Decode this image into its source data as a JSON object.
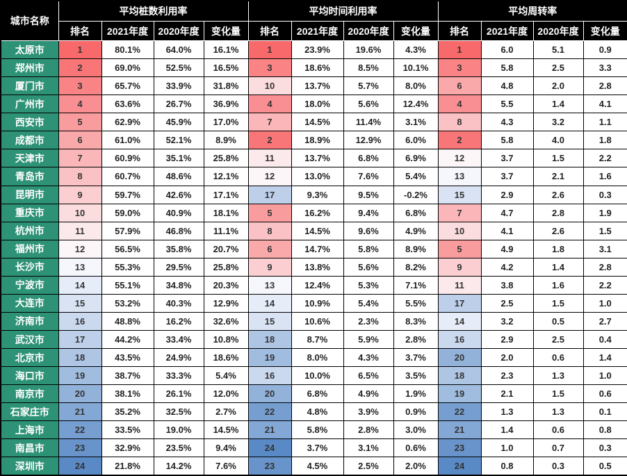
{
  "chart_data": {
    "type": "table",
    "corner_header": "城市名称",
    "column_groups": [
      {
        "title": "平均桩数利用率",
        "columns": [
          "排名",
          "2021年度",
          "2020年度",
          "变化量"
        ]
      },
      {
        "title": "平均时间利用率",
        "columns": [
          "排名",
          "2021年度",
          "2020年度",
          "变化量"
        ]
      },
      {
        "title": "平均周转率",
        "columns": [
          "排名",
          "2021年度",
          "2020年度",
          "变化量"
        ]
      }
    ],
    "rank_scale": {
      "min_rank": 1,
      "max_rank": 24
    },
    "rows": [
      {
        "city": "太原市",
        "cells": [
          [
            1,
            "80.1%",
            "64.0%",
            "16.1%"
          ],
          [
            1,
            "23.9%",
            "19.6%",
            "4.3%"
          ],
          [
            1,
            "6.0",
            "5.1",
            "0.9"
          ]
        ]
      },
      {
        "city": "郑州市",
        "cells": [
          [
            2,
            "69.0%",
            "52.5%",
            "16.5%"
          ],
          [
            3,
            "18.6%",
            "8.5%",
            "10.1%"
          ],
          [
            3,
            "5.8",
            "2.5",
            "3.3"
          ]
        ]
      },
      {
        "city": "厦门市",
        "cells": [
          [
            3,
            "65.7%",
            "33.9%",
            "31.8%"
          ],
          [
            10,
            "13.7%",
            "5.7%",
            "8.0%"
          ],
          [
            6,
            "4.8",
            "2.0",
            "2.8"
          ]
        ]
      },
      {
        "city": "广州市",
        "cells": [
          [
            4,
            "63.6%",
            "26.7%",
            "36.9%"
          ],
          [
            4,
            "18.0%",
            "5.6%",
            "12.4%"
          ],
          [
            4,
            "5.5",
            "1.4",
            "4.1"
          ]
        ]
      },
      {
        "city": "西安市",
        "cells": [
          [
            5,
            "62.9%",
            "45.9%",
            "17.0%"
          ],
          [
            7,
            "14.5%",
            "11.4%",
            "3.1%"
          ],
          [
            8,
            "4.3",
            "3.2",
            "1.1"
          ]
        ]
      },
      {
        "city": "成都市",
        "cells": [
          [
            6,
            "61.0%",
            "52.1%",
            "8.9%"
          ],
          [
            2,
            "18.9%",
            "12.9%",
            "6.0%"
          ],
          [
            2,
            "5.8",
            "4.0",
            "1.8"
          ]
        ]
      },
      {
        "city": "天津市",
        "cells": [
          [
            7,
            "60.9%",
            "35.1%",
            "25.8%"
          ],
          [
            11,
            "13.7%",
            "6.8%",
            "6.9%"
          ],
          [
            12,
            "3.7",
            "1.5",
            "2.2"
          ]
        ]
      },
      {
        "city": "青岛市",
        "cells": [
          [
            8,
            "60.7%",
            "48.6%",
            "12.1%"
          ],
          [
            12,
            "13.0%",
            "7.6%",
            "5.4%"
          ],
          [
            13,
            "3.7",
            "2.1",
            "1.6"
          ]
        ]
      },
      {
        "city": "昆明市",
        "cells": [
          [
            9,
            "59.7%",
            "42.6%",
            "17.1%"
          ],
          [
            17,
            "9.3%",
            "9.5%",
            "-0.2%"
          ],
          [
            15,
            "2.9",
            "2.6",
            "0.3"
          ]
        ]
      },
      {
        "city": "重庆市",
        "cells": [
          [
            10,
            "59.0%",
            "40.9%",
            "18.1%"
          ],
          [
            5,
            "16.2%",
            "9.4%",
            "6.8%"
          ],
          [
            7,
            "4.7",
            "2.8",
            "1.9"
          ]
        ]
      },
      {
        "city": "杭州市",
        "cells": [
          [
            11,
            "57.9%",
            "46.8%",
            "11.1%"
          ],
          [
            8,
            "14.5%",
            "9.6%",
            "4.9%"
          ],
          [
            10,
            "4.1",
            "2.6",
            "1.5"
          ]
        ]
      },
      {
        "city": "福州市",
        "cells": [
          [
            12,
            "56.5%",
            "35.8%",
            "20.7%"
          ],
          [
            6,
            "14.7%",
            "5.8%",
            "8.9%"
          ],
          [
            5,
            "4.9",
            "1.8",
            "3.1"
          ]
        ]
      },
      {
        "city": "长沙市",
        "cells": [
          [
            13,
            "55.3%",
            "29.5%",
            "25.8%"
          ],
          [
            9,
            "13.8%",
            "5.6%",
            "8.2%"
          ],
          [
            9,
            "4.2",
            "1.4",
            "2.8"
          ]
        ]
      },
      {
        "city": "宁波市",
        "cells": [
          [
            14,
            "55.1%",
            "34.8%",
            "20.3%"
          ],
          [
            13,
            "12.4%",
            "5.3%",
            "7.1%"
          ],
          [
            11,
            "3.8",
            "1.6",
            "2.2"
          ]
        ]
      },
      {
        "city": "大连市",
        "cells": [
          [
            15,
            "53.2%",
            "40.3%",
            "12.9%"
          ],
          [
            14,
            "10.9%",
            "5.4%",
            "5.5%"
          ],
          [
            17,
            "2.5",
            "1.5",
            "1.0"
          ]
        ]
      },
      {
        "city": "济南市",
        "cells": [
          [
            16,
            "48.8%",
            "16.2%",
            "32.6%"
          ],
          [
            15,
            "10.6%",
            "2.3%",
            "8.3%"
          ],
          [
            14,
            "3.2",
            "0.5",
            "2.7"
          ]
        ]
      },
      {
        "city": "武汉市",
        "cells": [
          [
            17,
            "44.2%",
            "33.4%",
            "10.8%"
          ],
          [
            18,
            "8.7%",
            "5.9%",
            "2.8%"
          ],
          [
            16,
            "2.9",
            "2.5",
            "0.4"
          ]
        ]
      },
      {
        "city": "北京市",
        "cells": [
          [
            18,
            "43.5%",
            "24.9%",
            "18.6%"
          ],
          [
            19,
            "8.0%",
            "4.3%",
            "3.7%"
          ],
          [
            20,
            "2.0",
            "0.6",
            "1.4"
          ]
        ]
      },
      {
        "city": "海口市",
        "cells": [
          [
            19,
            "38.7%",
            "33.3%",
            "5.4%"
          ],
          [
            16,
            "10.0%",
            "6.5%",
            "3.5%"
          ],
          [
            18,
            "2.3",
            "1.3",
            "1.0"
          ]
        ]
      },
      {
        "city": "南京市",
        "cells": [
          [
            20,
            "38.1%",
            "26.1%",
            "12.0%"
          ],
          [
            20,
            "6.8%",
            "4.9%",
            "1.9%"
          ],
          [
            19,
            "2.1",
            "1.5",
            "0.6"
          ]
        ]
      },
      {
        "city": "石家庄市",
        "cells": [
          [
            21,
            "35.2%",
            "32.5%",
            "2.7%"
          ],
          [
            22,
            "4.8%",
            "3.9%",
            "0.9%"
          ],
          [
            22,
            "1.3",
            "1.3",
            "0.1"
          ]
        ]
      },
      {
        "city": "上海市",
        "cells": [
          [
            22,
            "33.5%",
            "19.0%",
            "14.5%"
          ],
          [
            21,
            "5.8%",
            "2.8%",
            "3.0%"
          ],
          [
            21,
            "1.4",
            "0.6",
            "0.8"
          ]
        ]
      },
      {
        "city": "南昌市",
        "cells": [
          [
            23,
            "32.9%",
            "23.5%",
            "9.4%"
          ],
          [
            24,
            "3.7%",
            "3.1%",
            "0.6%"
          ],
          [
            23,
            "1.0",
            "0.7",
            "0.3"
          ]
        ]
      },
      {
        "city": "深圳市",
        "cells": [
          [
            24,
            "21.8%",
            "14.2%",
            "7.6%"
          ],
          [
            23,
            "4.5%",
            "2.5%",
            "2.0%"
          ],
          [
            24,
            "0.8",
            "0.3",
            "0.5"
          ]
        ]
      }
    ],
    "colors": {
      "header_bg": "#000000",
      "header_text": "#ffffff",
      "city_bg": "#2e9276",
      "city_text": "#ffffff",
      "cell_bg": "#ffffff",
      "cell_text": "#1f1f1f",
      "rank_text": "#333333",
      "grid": "#000000",
      "rank_scale_low": "#f8696b",
      "rank_scale_mid": "#fcfcff",
      "rank_scale_high": "#5a8ac6"
    }
  }
}
